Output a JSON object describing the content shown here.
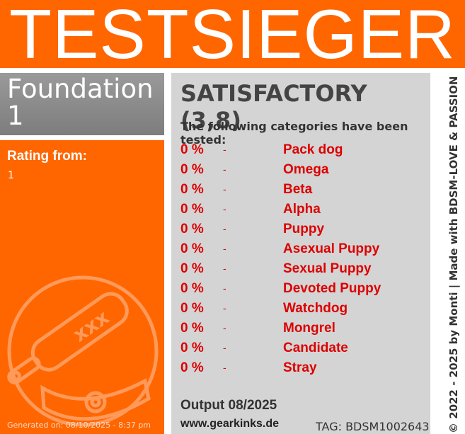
{
  "header": {
    "title": "TESTSIEGER"
  },
  "product": {
    "name": "Foundation 1"
  },
  "rating": {
    "label": "Rating from:",
    "value": "1"
  },
  "generated": "Generated on: 08/10/2025 - 8:37 pm",
  "verdict": "SATISFACTORY (3,8)",
  "intro": "The following categories have been tested:",
  "categories": [
    {
      "percent": "0 %",
      "dash": "-",
      "name": "Pack dog"
    },
    {
      "percent": "0 %",
      "dash": "-",
      "name": "Omega"
    },
    {
      "percent": "0 %",
      "dash": "-",
      "name": "Beta"
    },
    {
      "percent": "0 %",
      "dash": "-",
      "name": "Alpha"
    },
    {
      "percent": "0 %",
      "dash": "-",
      "name": "Puppy"
    },
    {
      "percent": "0 %",
      "dash": "-",
      "name": "Asexual Puppy"
    },
    {
      "percent": "0 %",
      "dash": "-",
      "name": "Sexual Puppy"
    },
    {
      "percent": "0 %",
      "dash": "-",
      "name": "Devoted Puppy"
    },
    {
      "percent": "0 %",
      "dash": "-",
      "name": "Watchdog"
    },
    {
      "percent": "0 %",
      "dash": "-",
      "name": "Mongrel"
    },
    {
      "percent": "0 %",
      "dash": "-",
      "name": "Candidate"
    },
    {
      "percent": "0 %",
      "dash": "-",
      "name": "Stray"
    }
  ],
  "footer": {
    "output": "Output 08/2025",
    "website": "www.gearkinks.de",
    "tag": "TAG: BDSM1002643"
  },
  "copyright": "© 2022 - 2025 by Monti | Made with BDSM-LOVE & PASSION"
}
